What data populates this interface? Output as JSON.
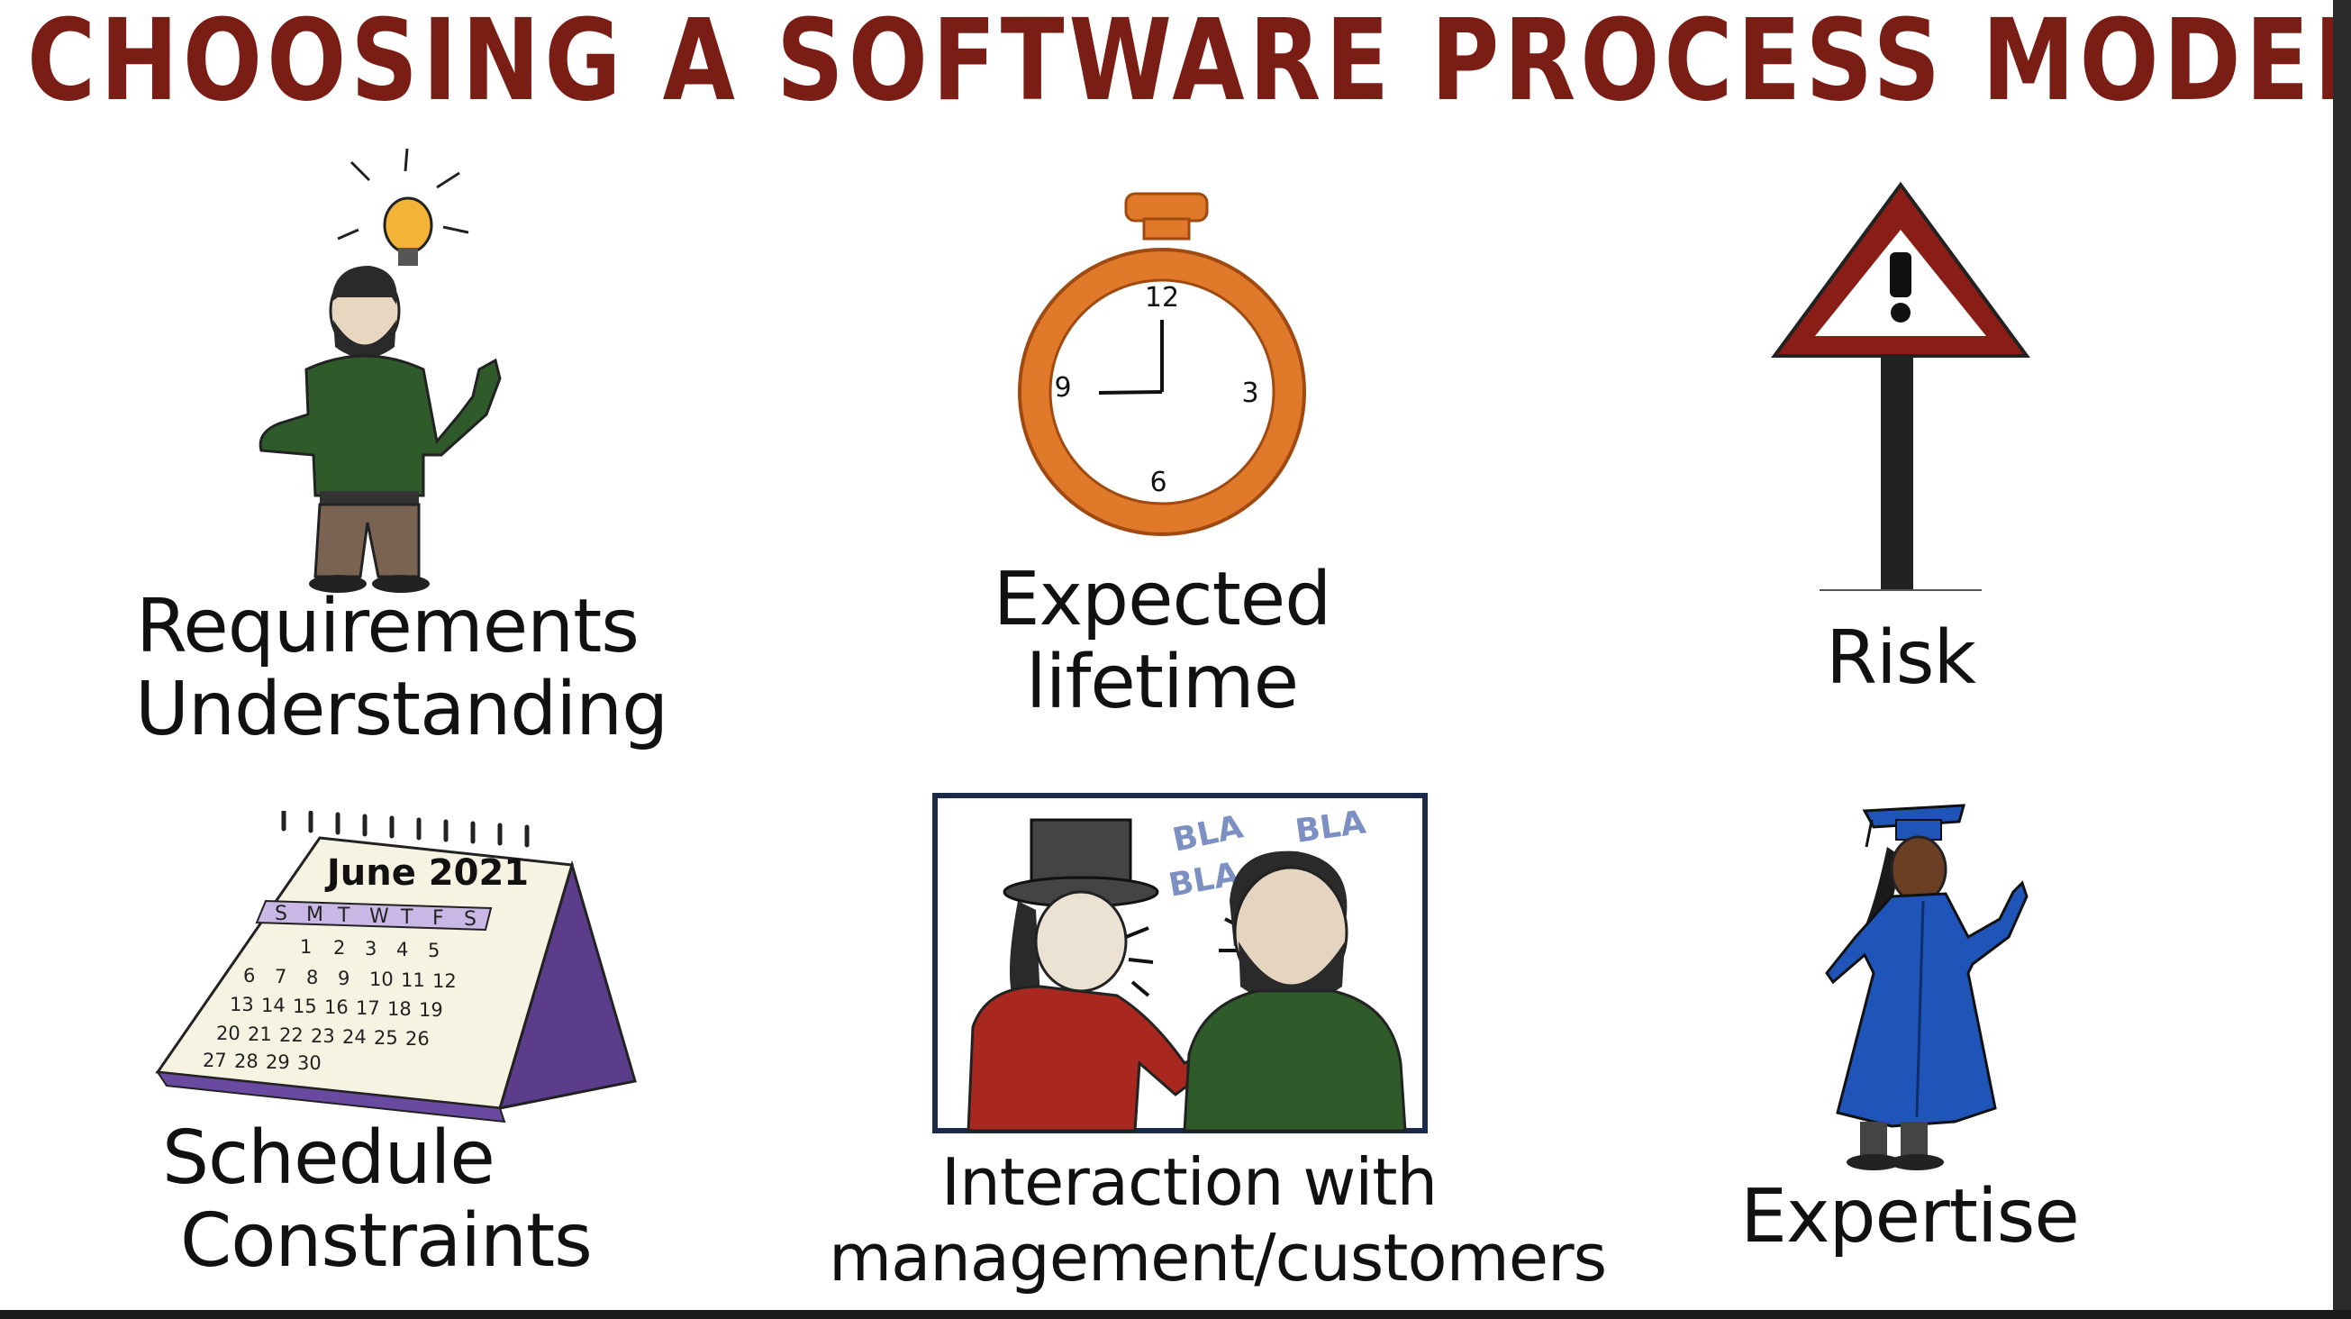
{
  "title": "CHOOSING A SOFTWARE PROCESS MODEL",
  "factors": [
    {
      "label_line1": "Requirements",
      "label_line2": "Understanding",
      "icon": "idea-person-icon"
    },
    {
      "label_line1": "Expected",
      "label_line2": "lifetime",
      "icon": "stopwatch-icon"
    },
    {
      "label_line1": "Risk",
      "label_line2": "",
      "icon": "warning-sign-icon"
    },
    {
      "label_line1": "Schedule",
      "label_line2": "Constraints",
      "icon": "calendar-icon"
    },
    {
      "label_line1": "Interaction with",
      "label_line2": "management/customers",
      "icon": "conversation-icon"
    },
    {
      "label_line1": "Expertise",
      "label_line2": "",
      "icon": "graduate-icon"
    }
  ],
  "clock": {
    "n12": "12",
    "n3": "3",
    "n6": "6",
    "n9": "9"
  },
  "calendar": {
    "header": "June 2021",
    "weekdays": [
      "S",
      "M",
      "T",
      "W",
      "T",
      "F",
      "S"
    ],
    "row1": [
      "",
      "",
      "1",
      "2",
      "3",
      "4",
      "5"
    ],
    "row2": [
      "6",
      "7",
      "8",
      "9",
      "10",
      "11",
      "12"
    ],
    "row3": [
      "13",
      "14",
      "15",
      "16",
      "17",
      "18",
      "19"
    ],
    "row4": [
      "20",
      "21",
      "22",
      "23",
      "24",
      "25",
      "26"
    ],
    "row5": [
      "27",
      "28",
      "29",
      "30",
      "",
      "",
      ""
    ]
  },
  "speech": {
    "bla1": "BLA",
    "bla2": "BLA",
    "bla3": "BLA"
  },
  "colors": {
    "title": "#7a1d14",
    "clock": "#e07a2a",
    "sign": "#8a1e17",
    "sweater": "#2f5a2a",
    "gown": "#1f55b8"
  }
}
